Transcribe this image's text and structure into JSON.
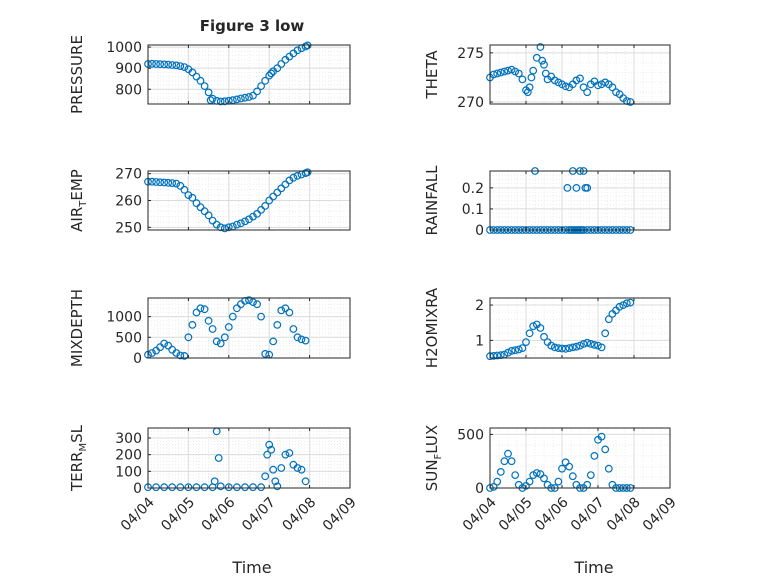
{
  "figure": {
    "title": "Figure 3 low",
    "xlabel": "Time"
  },
  "colors": {
    "marker": "#0072BD",
    "axis": "#262626",
    "grid": "#dcdcdc",
    "minorgrid": "#ececec"
  },
  "chart_data": [
    {
      "type": "scatter",
      "ylabel": "PRESSURE",
      "ylim": [
        730,
        1010
      ],
      "yticks": [
        800,
        900,
        1000
      ],
      "xticklabels_shown": false,
      "x": [
        0,
        0.1,
        0.2,
        0.3,
        0.4,
        0.5,
        0.6,
        0.7,
        0.8,
        0.9,
        1,
        1.1,
        1.2,
        1.3,
        1.4,
        1.5,
        1.55,
        1.6,
        1.7,
        1.8,
        1.9,
        2,
        2.1,
        2.2,
        2.3,
        2.4,
        2.5,
        2.6,
        2.7,
        2.8,
        2.9,
        3,
        3.05,
        3.1,
        3.2,
        3.3,
        3.4,
        3.5,
        3.6,
        3.7,
        3.8,
        3.9,
        3.95
      ],
      "y": [
        920,
        921,
        920,
        919,
        918,
        917,
        915,
        913,
        910,
        905,
        895,
        880,
        860,
        840,
        815,
        785,
        748,
        755,
        745,
        742,
        743,
        745,
        748,
        752,
        756,
        760,
        763,
        770,
        790,
        815,
        840,
        865,
        875,
        885,
        900,
        920,
        940,
        955,
        970,
        985,
        995,
        1003,
        1008
      ]
    },
    {
      "type": "scatter",
      "ylabel": "THETA",
      "ylim": [
        269.8,
        275.8
      ],
      "yticks": [
        270,
        275
      ],
      "xticklabels_shown": false,
      "x": [
        0,
        0.1,
        0.2,
        0.3,
        0.4,
        0.5,
        0.6,
        0.7,
        0.8,
        0.9,
        1,
        1.05,
        1.1,
        1.15,
        1.2,
        1.3,
        1.4,
        1.45,
        1.5,
        1.55,
        1.6,
        1.7,
        1.8,
        1.9,
        2,
        2.1,
        2.2,
        2.3,
        2.4,
        2.5,
        2.6,
        2.7,
        2.8,
        2.9,
        3,
        3.1,
        3.2,
        3.3,
        3.4,
        3.5,
        3.6,
        3.7,
        3.8,
        3.9
      ],
      "y": [
        272.5,
        272.8,
        272.9,
        273.0,
        273.1,
        273.2,
        273.3,
        273.1,
        272.9,
        272.3,
        271.2,
        271.0,
        271.5,
        272.5,
        273.2,
        274.5,
        275.6,
        274.2,
        273.8,
        272.9,
        272.3,
        272.6,
        272.2,
        272.0,
        271.8,
        271.6,
        271.5,
        271.8,
        272.2,
        272.4,
        271.5,
        271.0,
        271.8,
        272.1,
        271.7,
        271.8,
        272.0,
        271.8,
        271.5,
        271.0,
        270.8,
        270.4,
        270.1,
        270.0
      ]
    },
    {
      "type": "scatter",
      "ylabel": "AIR_TEMP",
      "ylim": [
        249,
        271
      ],
      "yticks": [
        250,
        260,
        270
      ],
      "xticklabels_shown": false,
      "x": [
        0,
        0.1,
        0.2,
        0.3,
        0.4,
        0.5,
        0.6,
        0.7,
        0.8,
        0.9,
        1,
        1.1,
        1.2,
        1.3,
        1.4,
        1.5,
        1.6,
        1.7,
        1.8,
        1.9,
        2,
        2.1,
        2.2,
        2.3,
        2.4,
        2.5,
        2.6,
        2.7,
        2.8,
        2.9,
        3,
        3.1,
        3.2,
        3.3,
        3.4,
        3.5,
        3.6,
        3.7,
        3.8,
        3.9,
        3.95
      ],
      "y": [
        267,
        267,
        266.9,
        266.8,
        266.7,
        266.6,
        266.5,
        266.3,
        265.5,
        264,
        262,
        261,
        259,
        257.5,
        256,
        254.5,
        252.5,
        251,
        250,
        249.6,
        250,
        250.3,
        251,
        251.5,
        252.2,
        253,
        254,
        255,
        256.5,
        258,
        260,
        261.5,
        263,
        264.5,
        266,
        267.5,
        268.5,
        269.2,
        269.7,
        270.2,
        270.5
      ]
    },
    {
      "type": "scatter",
      "ylabel": "RAINFALL",
      "ylim": [
        0,
        0.28
      ],
      "yticks": [
        0,
        0.1,
        0.2
      ],
      "xticklabels_shown": false,
      "x": [
        0,
        0.1,
        0.2,
        0.3,
        0.4,
        0.5,
        0.6,
        0.7,
        0.8,
        0.9,
        1,
        1.1,
        1.2,
        1.3,
        1.4,
        1.5,
        1.6,
        1.7,
        1.8,
        1.9,
        2,
        2.1,
        2.2,
        2.25,
        2.3,
        2.35,
        2.4,
        2.45,
        2.5,
        2.55,
        2.6,
        2.7,
        2.8,
        2.9,
        3,
        3.1,
        3.2,
        3.3,
        3.4,
        3.5,
        3.6,
        3.7,
        3.8,
        3.9,
        1.25,
        2.3,
        2.5,
        2.6,
        2.7,
        2.15,
        2.4,
        2.65
      ],
      "y": [
        0,
        0,
        0,
        0,
        0,
        0,
        0,
        0,
        0,
        0,
        0,
        0,
        0,
        0,
        0,
        0,
        0,
        0,
        0,
        0,
        0,
        0,
        0,
        0,
        0,
        0,
        0,
        0,
        0,
        0,
        0,
        0,
        0,
        0,
        0,
        0,
        0,
        0,
        0,
        0,
        0,
        0,
        0,
        0,
        0.28,
        0.28,
        0.28,
        0.28,
        0.2,
        0.2,
        0.2,
        0.2
      ]
    },
    {
      "type": "scatter",
      "ylabel": "MIXDEPTH",
      "ylim": [
        0,
        1450
      ],
      "yticks": [
        0,
        500,
        1000
      ],
      "xticklabels_shown": false,
      "x": [
        0,
        0.1,
        0.2,
        0.3,
        0.4,
        0.5,
        0.6,
        0.7,
        0.8,
        0.9,
        1,
        1.1,
        1.2,
        1.3,
        1.4,
        1.5,
        1.6,
        1.7,
        1.8,
        1.9,
        2,
        2.1,
        2.2,
        2.3,
        2.4,
        2.5,
        2.6,
        2.7,
        2.8,
        2.9,
        3,
        3.1,
        3.2,
        3.3,
        3.4,
        3.5,
        3.6,
        3.7,
        3.8,
        3.9
      ],
      "y": [
        80,
        120,
        180,
        260,
        350,
        300,
        200,
        120,
        60,
        50,
        500,
        800,
        1100,
        1200,
        1180,
        900,
        700,
        400,
        350,
        500,
        750,
        1000,
        1200,
        1300,
        1380,
        1400,
        1350,
        1300,
        1000,
        100,
        80,
        400,
        800,
        1150,
        1200,
        1100,
        700,
        500,
        450,
        420
      ]
    },
    {
      "type": "scatter",
      "ylabel": "H2OMIXRA",
      "ylim": [
        0.5,
        2.2
      ],
      "yticks": [
        1,
        2
      ],
      "xticklabels_shown": false,
      "x": [
        0,
        0.1,
        0.2,
        0.3,
        0.4,
        0.5,
        0.6,
        0.7,
        0.8,
        0.9,
        1,
        1.1,
        1.2,
        1.3,
        1.4,
        1.5,
        1.6,
        1.7,
        1.8,
        1.9,
        2,
        2.1,
        2.2,
        2.3,
        2.4,
        2.5,
        2.6,
        2.7,
        2.8,
        2.9,
        3,
        3.1,
        3.2,
        3.3,
        3.4,
        3.5,
        3.6,
        3.7,
        3.8,
        3.9
      ],
      "y": [
        0.55,
        0.56,
        0.57,
        0.58,
        0.6,
        0.65,
        0.7,
        0.72,
        0.74,
        0.78,
        0.95,
        1.2,
        1.4,
        1.45,
        1.35,
        1.1,
        0.95,
        0.85,
        0.8,
        0.78,
        0.77,
        0.76,
        0.78,
        0.8,
        0.82,
        0.85,
        0.9,
        0.93,
        0.9,
        0.87,
        0.85,
        0.8,
        1.2,
        1.6,
        1.75,
        1.85,
        1.95,
        2.0,
        2.05,
        2.07
      ]
    },
    {
      "type": "scatter",
      "ylabel": "TERR_MSL",
      "ylim": [
        0,
        360
      ],
      "yticks": [
        0,
        100,
        200,
        300
      ],
      "xticklabels_shown": true,
      "xticklabels": [
        "04/04",
        "04/05",
        "04/06",
        "04/07",
        "04/08",
        "04/09"
      ],
      "x": [
        0,
        0.2,
        0.4,
        0.6,
        0.8,
        1,
        1.2,
        1.4,
        1.6,
        1.65,
        1.7,
        1.75,
        1.8,
        2,
        2.2,
        2.4,
        2.6,
        2.8,
        2.9,
        2.95,
        3.0,
        3.05,
        3.1,
        3.15,
        3.2,
        3.3,
        3.4,
        3.5,
        3.6,
        3.7,
        3.8,
        3.9
      ],
      "y": [
        5,
        5,
        5,
        5,
        5,
        5,
        5,
        5,
        5,
        40,
        340,
        180,
        10,
        5,
        5,
        5,
        5,
        5,
        70,
        200,
        260,
        230,
        110,
        40,
        10,
        120,
        200,
        210,
        140,
        120,
        110,
        40
      ]
    },
    {
      "type": "scatter",
      "ylabel": "SUN_FLUX",
      "ylim": [
        0,
        560
      ],
      "yticks": [
        0,
        500
      ],
      "xticklabels_shown": true,
      "xticklabels": [
        "04/04",
        "04/05",
        "04/06",
        "04/07",
        "04/08",
        "04/09"
      ],
      "x": [
        0,
        0.1,
        0.2,
        0.3,
        0.4,
        0.5,
        0.6,
        0.7,
        0.8,
        0.9,
        1,
        1.1,
        1.2,
        1.3,
        1.4,
        1.5,
        1.6,
        1.7,
        1.8,
        1.9,
        2,
        2.1,
        2.2,
        2.3,
        2.4,
        2.5,
        2.6,
        2.7,
        2.8,
        2.9,
        3,
        3.1,
        3.2,
        3.3,
        3.4,
        3.5,
        3.6,
        3.7,
        3.8,
        3.9
      ],
      "y": [
        0,
        10,
        60,
        150,
        250,
        320,
        250,
        120,
        30,
        0,
        20,
        60,
        120,
        140,
        130,
        90,
        30,
        0,
        0,
        60,
        180,
        240,
        200,
        110,
        30,
        0,
        0,
        30,
        120,
        300,
        450,
        480,
        360,
        180,
        30,
        0,
        0,
        0,
        0,
        0
      ]
    }
  ]
}
